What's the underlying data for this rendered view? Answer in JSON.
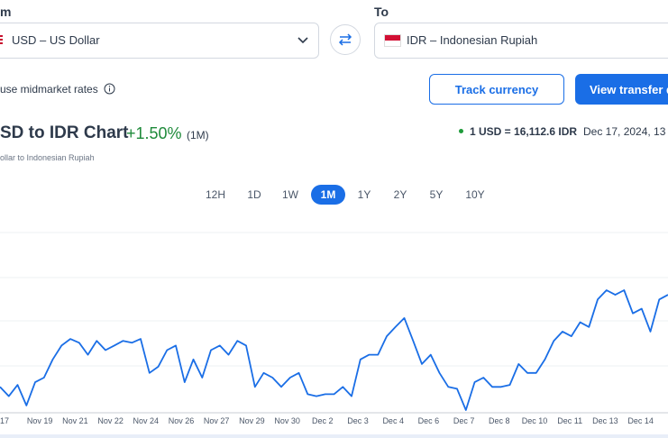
{
  "from_label": "m",
  "to_label": "To",
  "from_currency": "USD – US Dollar",
  "to_currency": "IDR – Indonesian Rupiah",
  "midmarket_note": "use midmarket rates",
  "track_button": "Track currency",
  "transfer_button": "View transfer q",
  "chart_title": "SD to IDR Chart",
  "change": "+1.50%",
  "change_period": "(1M)",
  "rate": "1 USD = 16,112.6 IDR",
  "rate_time": "Dec 17, 2024, 13",
  "subtitle": "ollar to Indonesian Rupiah",
  "periods": [
    "12H",
    "1D",
    "1W",
    "1M",
    "1Y",
    "2Y",
    "5Y",
    "10Y"
  ],
  "selected_period": "1M",
  "chart_data": {
    "type": "line",
    "color": "#1a6ee6",
    "xticks": [
      "17",
      "Nov 19",
      "Nov 21",
      "Nov 22",
      "Nov 24",
      "Nov 26",
      "Nov 27",
      "Nov 29",
      "Nov 30",
      "Dec 2",
      "Dec 3",
      "Dec 4",
      "Dec 6",
      "Dec 7",
      "Dec 8",
      "Dec 10",
      "Dec 11",
      "Dec 13",
      "Dec 14"
    ],
    "values": [
      15874,
      15850,
      15879,
      15826,
      15886,
      15898,
      15945,
      15981,
      15998,
      15988,
      15957,
      15993,
      15969,
      15981,
      15993,
      15988,
      15998,
      15910,
      15926,
      15969,
      15981,
      15886,
      15945,
      15898,
      15969,
      15981,
      15957,
      15993,
      15981,
      15874,
      15910,
      15898,
      15874,
      15898,
      15910,
      15855,
      15850,
      15855,
      15855,
      15874,
      15850,
      15945,
      15957,
      15957,
      16005,
      16029,
      16052,
      15993,
      15933,
      15957,
      15910,
      15874,
      15869,
      15814,
      15886,
      15898,
      15874,
      15874,
      15879,
      15933,
      15910,
      15910,
      15945,
      15993,
      16017,
      16005,
      16041,
      16029,
      16100,
      16124,
      16112,
      16124,
      16064,
      16076,
      16017,
      16100,
      16112
    ]
  }
}
